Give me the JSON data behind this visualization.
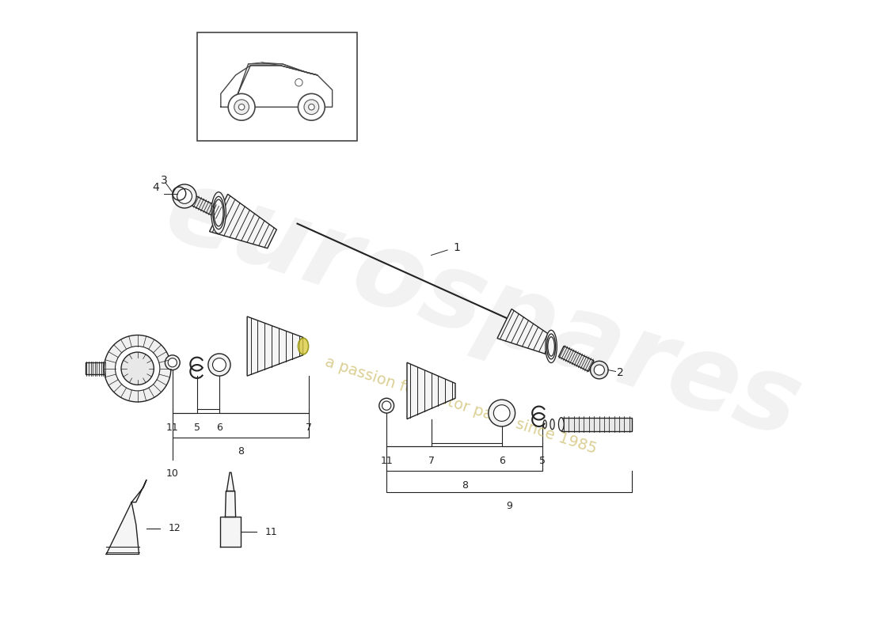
{
  "bg_color": "#ffffff",
  "line_color": "#222222",
  "watermark_text1": "eurospares",
  "watermark_text2": "a passion for motor parts since 1985",
  "watermark_color1": "#d0d0d0",
  "watermark_color2": "#ccbb66",
  "fig_w": 11.0,
  "fig_h": 8.0,
  "dpi": 100
}
